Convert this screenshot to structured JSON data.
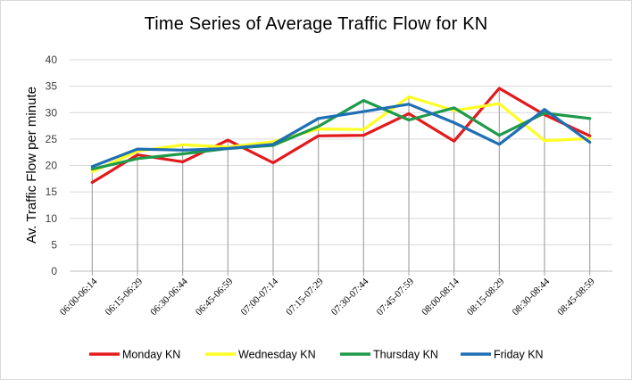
{
  "chart_data": {
    "type": "line",
    "title": "Time Series of Average Traffic Flow for KN",
    "xlabel": "",
    "ylabel": "Av. Traffic Flow per minute",
    "ylim": [
      0,
      40
    ],
    "yticks": [
      0,
      5,
      10,
      15,
      20,
      25,
      30,
      35,
      40
    ],
    "grid": true,
    "legend_position": "bottom",
    "categories": [
      "06:00-06:14",
      "06:15-06:29",
      "06:30-06:44",
      "06:45-06:59",
      "07:00-07:14",
      "07:15-07:29",
      "07:30-07:44",
      "07:45-07:59",
      "08:00-08:14",
      "08:15-08:29",
      "08:30-08:44",
      "08:45-08:59"
    ],
    "series": [
      {
        "name": "Monday KN",
        "color": "#e31a1c",
        "values": [
          16.8,
          22.0,
          20.7,
          24.8,
          20.5,
          25.6,
          25.7,
          29.8,
          24.6,
          34.6,
          29.6,
          25.6
        ]
      },
      {
        "name": "Wednesday KN",
        "color": "#ffff22",
        "values": [
          18.8,
          22.7,
          23.9,
          23.5,
          24.5,
          26.9,
          26.8,
          33.0,
          30.4,
          31.7,
          24.7,
          25.1
        ]
      },
      {
        "name": "Thursday KN",
        "color": "#1e9a4a",
        "values": [
          19.3,
          21.3,
          22.2,
          23.2,
          23.8,
          27.4,
          32.3,
          28.6,
          30.9,
          25.7,
          29.9,
          28.9
        ]
      },
      {
        "name": "Friday KN",
        "color": "#1f6fb4",
        "values": [
          19.8,
          23.1,
          22.9,
          23.2,
          24.0,
          28.9,
          30.2,
          31.6,
          28.1,
          24.0,
          30.6,
          24.4
        ]
      }
    ]
  }
}
